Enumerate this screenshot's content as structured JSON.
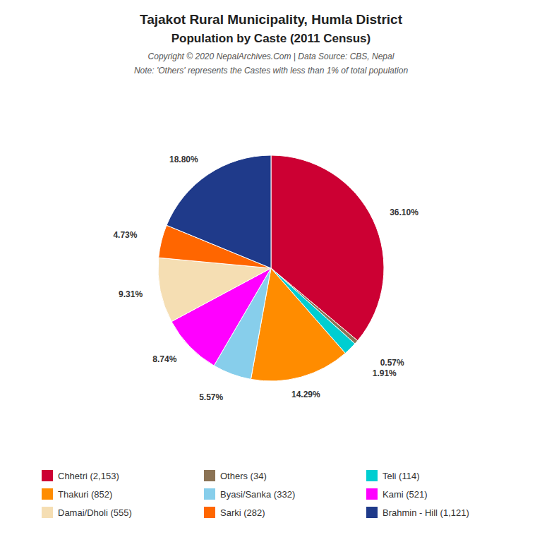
{
  "chart_data": {
    "type": "pie",
    "title": "Tajakot Rural Municipality, Humla District",
    "subtitle": "Population by Caste (2011 Census)",
    "annotations": [
      "Copyright © 2020 NepalArchives.Com | Data Source: CBS, Nepal",
      "Note: 'Others' represents the Castes with less than 1% of total population"
    ],
    "categories": [
      "Chhetri (2,153)",
      "Others (34)",
      "Teli (114)",
      "Thakuri (852)",
      "Byasi/Sanka (332)",
      "Kami (521)",
      "Damai/Dholi (555)",
      "Sarki (282)",
      "Brahmin - Hill (1,121)"
    ],
    "values": [
      36.1,
      0.57,
      1.91,
      14.29,
      5.57,
      8.74,
      9.31,
      4.73,
      18.8
    ],
    "value_labels": [
      "36.10%",
      "0.57%",
      "1.91%",
      "14.29%",
      "5.57%",
      "8.74%",
      "9.31%",
      "4.73%",
      "18.80%"
    ],
    "colors": [
      "#CC0033",
      "#8B7355",
      "#00CED1",
      "#FF8C00",
      "#87CEEB",
      "#FF00FF",
      "#F5DEB3",
      "#FF6600",
      "#1F3A8A"
    ],
    "data_labels": true
  }
}
